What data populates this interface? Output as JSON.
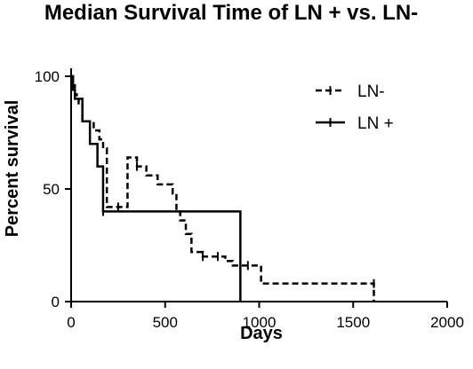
{
  "chart_data": {
    "type": "line",
    "title": "Median Survival Time of LN + vs. LN-",
    "xlabel": "Days",
    "ylabel": "Percent survival",
    "xlim": [
      0,
      2000
    ],
    "ylim": [
      0,
      100
    ],
    "x_ticks": [
      0,
      500,
      1000,
      1500,
      2000
    ],
    "y_ticks": [
      0,
      50,
      100
    ],
    "grid": false,
    "legend_position": "top-right",
    "series": [
      {
        "name": "LN-",
        "style": "dashed",
        "color": "#000000",
        "x": [
          0,
          10,
          20,
          30,
          40,
          60,
          120,
          150,
          170,
          190,
          250,
          300,
          350,
          400,
          460,
          540,
          560,
          580,
          610,
          640,
          700,
          780,
          820,
          860,
          900,
          940,
          1010,
          1610
        ],
        "y": [
          100,
          96,
          92,
          90,
          88,
          80,
          76,
          72,
          68,
          42,
          42,
          64,
          60,
          56,
          52,
          48,
          40,
          36,
          30,
          22,
          20,
          20,
          18,
          16,
          16,
          16,
          8,
          0
        ],
        "censored": [
          [
            170,
            42
          ],
          [
            250,
            42
          ],
          [
            350,
            60
          ],
          [
            700,
            20
          ],
          [
            780,
            20
          ],
          [
            900,
            16
          ],
          [
            940,
            16
          ],
          [
            1610,
            8
          ]
        ]
      },
      {
        "name": "LN +",
        "style": "solid",
        "color": "#000000",
        "x": [
          0,
          10,
          20,
          30,
          60,
          100,
          140,
          170,
          900
        ],
        "y": [
          100,
          94,
          90,
          90,
          80,
          70,
          60,
          40,
          0
        ],
        "censored": [
          [
            10,
            97
          ],
          [
            170,
            40
          ]
        ]
      }
    ]
  }
}
